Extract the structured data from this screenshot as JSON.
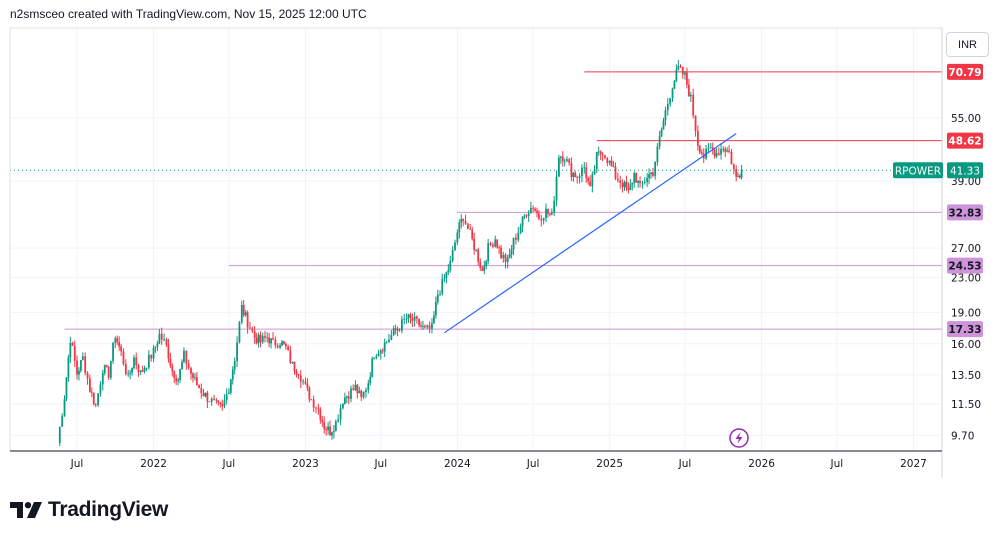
{
  "header": {
    "caption": "n2smsceo created with TradingView.com, Nov 15, 2025 12:00 UTC"
  },
  "currency_label": "INR",
  "brand": {
    "wordmark": "TradingView"
  },
  "colors": {
    "up": "#089981",
    "down": "#f23645",
    "resistance": "#f23645",
    "support": "#ce93d8",
    "trendline": "#2962ff",
    "last_price": "#089981"
  },
  "icons": {
    "lightning": "lightning-icon"
  },
  "chart_data": {
    "type": "candlestick",
    "symbol": "RPOWER",
    "currency": "INR",
    "y_scale": "log",
    "ylim": [
      8.9,
      90
    ],
    "y_ticks": [
      "9.70",
      "11.50",
      "13.50",
      "16.00",
      "19.00",
      "23.00",
      "27.00",
      "39.00",
      "55.00"
    ],
    "x_ticks": [
      "Jul",
      "2022",
      "Jul",
      "2023",
      "Jul",
      "2024",
      "Jul",
      "2025",
      "Jul",
      "2026",
      "Jul",
      "2027"
    ],
    "x_tick_dates": [
      "2021-07",
      "2022-01",
      "2022-07",
      "2023-01",
      "2023-07",
      "2024-01",
      "2024-07",
      "2025-01",
      "2025-07",
      "2026-01",
      "2026-07",
      "2027-01"
    ],
    "last_price": {
      "label": "RPOWER",
      "value": 41.33
    },
    "levels": [
      {
        "value": 70.79,
        "label": "70.79",
        "kind": "resistance",
        "from": "2024-11"
      },
      {
        "value": 48.62,
        "label": "48.62",
        "kind": "resistance",
        "from": "2024-12"
      },
      {
        "value": 32.83,
        "label": "32.83",
        "kind": "support",
        "from": "2024-01"
      },
      {
        "value": 24.53,
        "label": "24.53",
        "kind": "support",
        "from": "2022-07"
      },
      {
        "value": 17.33,
        "label": "17.33",
        "kind": "support",
        "from": "2021-06"
      }
    ],
    "trendline": {
      "start": {
        "date": "2023-12",
        "value": 17.0
      },
      "end": {
        "date": "2025-11",
        "value": 50.5
      }
    },
    "weekly_close_path": [
      [
        "2021-05-15",
        9.3
      ],
      [
        "2021-06-01",
        12.0
      ],
      [
        "2021-06-15",
        16.5
      ],
      [
        "2021-07-01",
        13.6
      ],
      [
        "2021-07-15",
        14.8
      ],
      [
        "2021-08-01",
        12.5
      ],
      [
        "2021-08-15",
        11.4
      ],
      [
        "2021-09-01",
        14.0
      ],
      [
        "2021-09-15",
        13.6
      ],
      [
        "2021-10-01",
        16.8
      ],
      [
        "2021-10-15",
        15.2
      ],
      [
        "2021-11-01",
        13.2
      ],
      [
        "2021-11-15",
        14.8
      ],
      [
        "2021-12-01",
        13.6
      ],
      [
        "2021-12-15",
        14.4
      ],
      [
        "2022-01-01",
        15.3
      ],
      [
        "2022-01-15",
        16.8
      ],
      [
        "2022-02-01",
        15.8
      ],
      [
        "2022-02-15",
        13.8
      ],
      [
        "2022-03-01",
        13.2
      ],
      [
        "2022-03-15",
        15.0
      ],
      [
        "2022-04-01",
        13.6
      ],
      [
        "2022-04-15",
        12.8
      ],
      [
        "2022-05-01",
        12.2
      ],
      [
        "2022-05-15",
        11.8
      ],
      [
        "2022-06-01",
        11.4
      ],
      [
        "2022-06-15",
        11.2
      ],
      [
        "2022-07-01",
        12.6
      ],
      [
        "2022-07-15",
        14.8
      ],
      [
        "2022-08-01",
        19.5
      ],
      [
        "2022-08-15",
        18.0
      ],
      [
        "2022-09-01",
        16.6
      ],
      [
        "2022-09-15",
        16.2
      ],
      [
        "2022-10-01",
        16.6
      ],
      [
        "2022-10-15",
        16.0
      ],
      [
        "2022-11-01",
        16.2
      ],
      [
        "2022-11-15",
        15.6
      ],
      [
        "2022-12-01",
        14.2
      ],
      [
        "2022-12-15",
        13.8
      ],
      [
        "2023-01-01",
        12.6
      ],
      [
        "2023-01-15",
        11.8
      ],
      [
        "2023-02-01",
        11.2
      ],
      [
        "2023-02-15",
        10.2
      ],
      [
        "2023-03-01",
        9.9
      ],
      [
        "2023-03-15",
        10.4
      ],
      [
        "2023-04-01",
        11.8
      ],
      [
        "2023-04-15",
        12.2
      ],
      [
        "2023-05-01",
        12.6
      ],
      [
        "2023-05-15",
        11.8
      ],
      [
        "2023-06-01",
        13.0
      ],
      [
        "2023-06-15",
        15.2
      ],
      [
        "2023-07-01",
        15.6
      ],
      [
        "2023-07-15",
        16.2
      ],
      [
        "2023-08-01",
        17.0
      ],
      [
        "2023-08-15",
        17.6
      ],
      [
        "2023-09-01",
        18.4
      ],
      [
        "2023-09-15",
        18.2
      ],
      [
        "2023-10-01",
        17.8
      ],
      [
        "2023-10-15",
        17.2
      ],
      [
        "2023-11-01",
        17.4
      ],
      [
        "2023-11-15",
        21.0
      ],
      [
        "2023-12-01",
        22.8
      ],
      [
        "2023-12-15",
        24.8
      ],
      [
        "2024-01-01",
        29.5
      ],
      [
        "2024-01-15",
        32.2
      ],
      [
        "2024-02-01",
        29.0
      ],
      [
        "2024-02-15",
        26.5
      ],
      [
        "2024-03-01",
        23.8
      ],
      [
        "2024-03-15",
        27.0
      ],
      [
        "2024-04-01",
        28.5
      ],
      [
        "2024-04-15",
        26.0
      ],
      [
        "2024-05-01",
        25.0
      ],
      [
        "2024-05-15",
        28.0
      ],
      [
        "2024-06-01",
        30.5
      ],
      [
        "2024-06-15",
        33.0
      ],
      [
        "2024-07-01",
        34.0
      ],
      [
        "2024-07-15",
        32.0
      ],
      [
        "2024-08-01",
        33.0
      ],
      [
        "2024-08-15",
        32.0
      ],
      [
        "2024-09-01",
        45.0
      ],
      [
        "2024-09-15",
        44.5
      ],
      [
        "2024-10-01",
        41.0
      ],
      [
        "2024-10-15",
        40.0
      ],
      [
        "2024-11-01",
        42.0
      ],
      [
        "2024-11-15",
        37.0
      ],
      [
        "2024-12-01",
        44.5
      ],
      [
        "2024-12-15",
        46.0
      ],
      [
        "2025-01-01",
        43.0
      ],
      [
        "2025-01-15",
        40.0
      ],
      [
        "2025-02-01",
        38.5
      ],
      [
        "2025-02-15",
        36.5
      ],
      [
        "2025-03-01",
        40.5
      ],
      [
        "2025-03-15",
        37.5
      ],
      [
        "2025-04-01",
        40.0
      ],
      [
        "2025-04-15",
        41.0
      ],
      [
        "2025-05-01",
        49.0
      ],
      [
        "2025-05-15",
        57.0
      ],
      [
        "2025-06-01",
        66.0
      ],
      [
        "2025-06-15",
        72.0
      ],
      [
        "2025-07-01",
        69.0
      ],
      [
        "2025-07-15",
        61.0
      ],
      [
        "2025-08-01",
        48.0
      ],
      [
        "2025-08-15",
        44.5
      ],
      [
        "2025-09-01",
        46.5
      ],
      [
        "2025-09-15",
        45.5
      ],
      [
        "2025-10-01",
        47.0
      ],
      [
        "2025-10-15",
        45.5
      ],
      [
        "2025-11-01",
        39.5
      ],
      [
        "2025-11-14",
        41.33
      ]
    ]
  }
}
